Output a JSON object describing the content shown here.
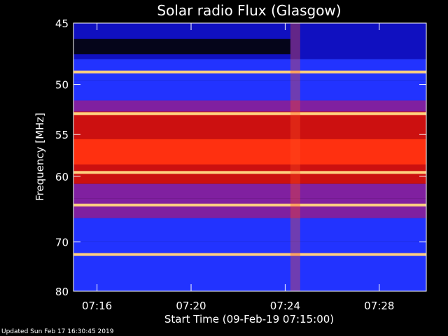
{
  "chart_data": {
    "type": "heatmap",
    "title": "Solar radio Flux (Glasgow)",
    "xlabel": "Start Time (09-Feb-19 07:15:00)",
    "ylabel": "Frequency [MHz]",
    "x_ticks": [
      "07:16",
      "07:20",
      "07:24",
      "07:28"
    ],
    "x_tick_minutes": [
      1,
      5,
      9,
      13
    ],
    "x_range_minutes": [
      0,
      15
    ],
    "y_ticks": [
      45,
      50,
      55,
      60,
      70,
      80
    ],
    "y_range": [
      45,
      80
    ],
    "y_scale": "reciprocal",
    "colormap": [
      "#1010c0",
      "#2233ff",
      "#8020a0",
      "#cc1010",
      "#ff3010",
      "#ffd080"
    ],
    "bright_bands_mhz": [
      48.9,
      52.8,
      59.5,
      64.0,
      72.3
    ],
    "burst_minute": 9.4,
    "grid": false
  },
  "footer": "Updated Sun Feb 17 16:30:45 2019"
}
